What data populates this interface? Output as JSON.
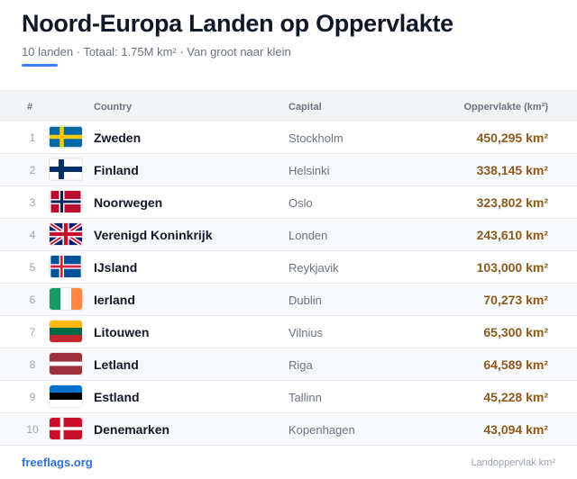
{
  "header": {
    "title": "Noord-Europa Landen op Oppervlakte",
    "subtitle": "10 landen · Totaal: 1.75M km² · Van groot naar klein"
  },
  "table": {
    "columns": {
      "num": "#",
      "country": "Country",
      "capital": "Capital",
      "area": "Oppervlakte (km²)"
    },
    "rows": [
      {
        "rank": "1",
        "country": "Zweden",
        "capital": "Stockholm",
        "area": "450,295 km²",
        "flag": "sweden-flag-icon"
      },
      {
        "rank": "2",
        "country": "Finland",
        "capital": "Helsinki",
        "area": "338,145 km²",
        "flag": "finland-flag-icon"
      },
      {
        "rank": "3",
        "country": "Noorwegen",
        "capital": "Oslo",
        "area": "323,802 km²",
        "flag": "norway-flag-icon"
      },
      {
        "rank": "4",
        "country": "Verenigd Koninkrijk",
        "capital": "Londen",
        "area": "243,610 km²",
        "flag": "uk-flag-icon"
      },
      {
        "rank": "5",
        "country": "IJsland",
        "capital": "Reykjavik",
        "area": "103,000 km²",
        "flag": "iceland-flag-icon"
      },
      {
        "rank": "6",
        "country": "Ierland",
        "capital": "Dublin",
        "area": "70,273 km²",
        "flag": "ireland-flag-icon"
      },
      {
        "rank": "7",
        "country": "Litouwen",
        "capital": "Vilnius",
        "area": "65,300 km²",
        "flag": "lithuania-flag-icon"
      },
      {
        "rank": "8",
        "country": "Letland",
        "capital": "Riga",
        "area": "64,589 km²",
        "flag": "latvia-flag-icon"
      },
      {
        "rank": "9",
        "country": "Estland",
        "capital": "Tallinn",
        "area": "45,228 km²",
        "flag": "estonia-flag-icon"
      },
      {
        "rank": "10",
        "country": "Denemarken",
        "capital": "Kopenhagen",
        "area": "43,094 km²",
        "flag": "denmark-flag-icon"
      }
    ]
  },
  "footer": {
    "source": "freeflags.org",
    "note": "Landoppervlak km²"
  },
  "colors": {
    "accent": "#3b82f6",
    "area_text": "#8a5a1e",
    "link": "#2f6fd8"
  }
}
